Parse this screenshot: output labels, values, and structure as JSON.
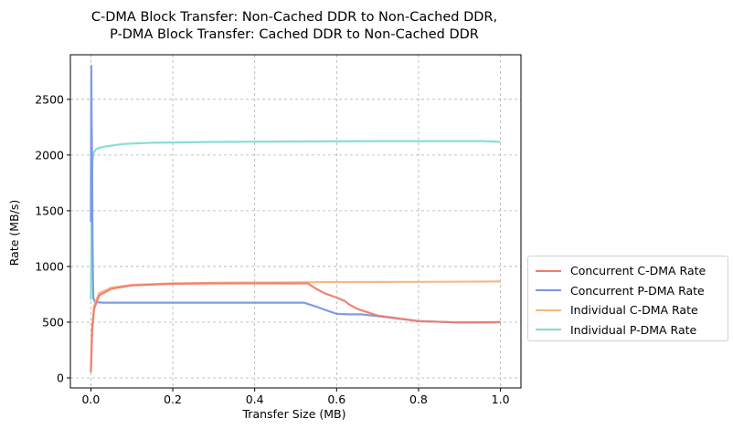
{
  "chart_data": {
    "type": "line",
    "title_line1": "C-DMA Block Transfer: Non-Cached DDR to Non-Cached DDR,",
    "title_line2": "P-DMA Block Transfer: Cached DDR to Non-Cached DDR",
    "xlabel": "Transfer Size (MB)",
    "ylabel": "Rate (MB/s)",
    "xlim": [
      -0.05,
      1.05
    ],
    "ylim": [
      -90,
      2900
    ],
    "xticks": [
      0.0,
      0.2,
      0.4,
      0.6,
      0.8,
      1.0
    ],
    "xtick_labels": [
      "0.0",
      "0.2",
      "0.4",
      "0.6",
      "0.8",
      "1.0"
    ],
    "yticks": [
      0,
      500,
      1000,
      1500,
      2000,
      2500
    ],
    "ytick_labels": [
      "0",
      "500",
      "1000",
      "1500",
      "2000",
      "2500"
    ],
    "grid": true,
    "grid_style": "dashed",
    "legend_position": "outside-right",
    "series": [
      {
        "name": "Individual P-DMA Rate",
        "color": "#7fded0",
        "points": [
          [
            0.0,
            700
          ],
          [
            0.001,
            1100
          ],
          [
            0.002,
            1700
          ],
          [
            0.004,
            1950
          ],
          [
            0.007,
            2020
          ],
          [
            0.012,
            2050
          ],
          [
            0.02,
            2065
          ],
          [
            0.04,
            2080
          ],
          [
            0.08,
            2100
          ],
          [
            0.15,
            2110
          ],
          [
            0.3,
            2118
          ],
          [
            0.5,
            2122
          ],
          [
            0.7,
            2125
          ],
          [
            0.9,
            2125
          ],
          [
            0.96,
            2125
          ],
          [
            1.0,
            2118
          ]
        ]
      },
      {
        "name": "Concurrent P-DMA Rate",
        "color": "#7797e6",
        "points": [
          [
            0.0,
            1400
          ],
          [
            0.001,
            2800
          ],
          [
            0.002,
            2300
          ],
          [
            0.003,
            1900
          ],
          [
            0.004,
            1300
          ],
          [
            0.005,
            900
          ],
          [
            0.006,
            720
          ],
          [
            0.01,
            680
          ],
          [
            0.03,
            675
          ],
          [
            0.1,
            675
          ],
          [
            0.3,
            675
          ],
          [
            0.52,
            675
          ],
          [
            0.55,
            640
          ],
          [
            0.58,
            600
          ],
          [
            0.6,
            575
          ],
          [
            0.63,
            570
          ],
          [
            0.66,
            570
          ],
          [
            0.7,
            555
          ],
          [
            0.8,
            510
          ],
          [
            0.9,
            497
          ],
          [
            1.0,
            500
          ]
        ]
      },
      {
        "name": "Individual C-DMA Rate",
        "color": "#f5b57e",
        "points": [
          [
            0.0,
            60
          ],
          [
            0.003,
            450
          ],
          [
            0.008,
            650
          ],
          [
            0.02,
            760
          ],
          [
            0.05,
            810
          ],
          [
            0.1,
            835
          ],
          [
            0.2,
            848
          ],
          [
            0.35,
            855
          ],
          [
            0.5,
            858
          ],
          [
            0.6,
            860
          ],
          [
            0.8,
            862
          ],
          [
            1.0,
            865
          ]
        ]
      },
      {
        "name": "Concurrent C-DMA Rate",
        "color": "#ee7d6e",
        "points": [
          [
            0.0,
            50
          ],
          [
            0.003,
            420
          ],
          [
            0.008,
            620
          ],
          [
            0.02,
            740
          ],
          [
            0.05,
            800
          ],
          [
            0.1,
            830
          ],
          [
            0.2,
            845
          ],
          [
            0.3,
            848
          ],
          [
            0.53,
            848
          ],
          [
            0.55,
            800
          ],
          [
            0.57,
            760
          ],
          [
            0.6,
            720
          ],
          [
            0.62,
            690
          ],
          [
            0.63,
            660
          ],
          [
            0.65,
            620
          ],
          [
            0.7,
            560
          ],
          [
            0.8,
            510
          ],
          [
            0.9,
            497
          ],
          [
            1.0,
            500
          ]
        ]
      }
    ],
    "legend": [
      {
        "label": "Concurrent C-DMA Rate",
        "color": "#ee7d6e"
      },
      {
        "label": "Concurrent P-DMA Rate",
        "color": "#7797e6"
      },
      {
        "label": "Individual C-DMA Rate",
        "color": "#f5b57e"
      },
      {
        "label": "Individual P-DMA Rate",
        "color": "#7fded0"
      }
    ]
  }
}
